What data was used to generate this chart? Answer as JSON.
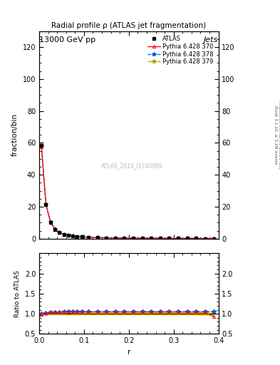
{
  "title": "Radial profile ρ (ATLAS jet fragmentation)",
  "header_left": "13000 GeV pp",
  "header_right": "Jets",
  "ylabel_main": "fraction/bin",
  "ylabel_ratio": "Ratio to ATLAS",
  "xlabel": "r",
  "right_label_top": "Rivet 3.1.10, ≥ 3.2M events",
  "right_label_bot": "mcplots.cern.ch [arXiv:1306.3436]",
  "watermark": "ATLAS_2019_I1740909",
  "ylim_main": [
    0,
    130
  ],
  "ylim_ratio": [
    0.5,
    2.5
  ],
  "yticks_main": [
    0,
    20,
    40,
    60,
    80,
    100,
    120
  ],
  "yticks_ratio": [
    0.5,
    1.0,
    1.5,
    2.0
  ],
  "xticks_main": [
    0.0,
    0.1,
    0.2,
    0.3
  ],
  "xticks_ratio": [
    0.0,
    0.1,
    0.2,
    0.3,
    0.4
  ],
  "xlim": [
    0.0,
    0.4
  ],
  "r_values": [
    0.005,
    0.015,
    0.025,
    0.035,
    0.045,
    0.055,
    0.065,
    0.075,
    0.085,
    0.095,
    0.11,
    0.13,
    0.15,
    0.17,
    0.19,
    0.21,
    0.23,
    0.25,
    0.27,
    0.29,
    0.31,
    0.33,
    0.35,
    0.37,
    0.39
  ],
  "atlas_values": [
    58.5,
    21.2,
    10.1,
    5.8,
    3.7,
    2.6,
    2.0,
    1.6,
    1.3,
    1.05,
    0.82,
    0.62,
    0.5,
    0.4,
    0.34,
    0.28,
    0.24,
    0.21,
    0.18,
    0.16,
    0.14,
    0.13,
    0.11,
    0.1,
    0.095
  ],
  "atlas_errors": [
    0.6,
    0.3,
    0.15,
    0.1,
    0.07,
    0.05,
    0.04,
    0.03,
    0.025,
    0.02,
    0.015,
    0.012,
    0.01,
    0.008,
    0.007,
    0.006,
    0.005,
    0.005,
    0.004,
    0.004,
    0.003,
    0.003,
    0.003,
    0.003,
    0.003
  ],
  "pythia370_ratio": [
    0.98,
    1.02,
    1.04,
    1.04,
    1.04,
    1.04,
    1.05,
    1.04,
    1.04,
    1.04,
    1.04,
    1.04,
    1.04,
    1.04,
    1.04,
    1.04,
    1.04,
    1.04,
    1.04,
    1.04,
    1.04,
    1.04,
    1.04,
    1.04,
    0.93
  ],
  "pythia378_ratio": [
    1.0,
    1.02,
    1.04,
    1.04,
    1.04,
    1.05,
    1.05,
    1.05,
    1.05,
    1.05,
    1.05,
    1.05,
    1.05,
    1.05,
    1.05,
    1.05,
    1.05,
    1.05,
    1.05,
    1.05,
    1.05,
    1.05,
    1.05,
    1.05,
    1.05
  ],
  "pythia379_ratio": [
    0.99,
    1.01,
    1.03,
    1.04,
    1.04,
    1.04,
    1.05,
    1.05,
    1.05,
    1.05,
    1.05,
    1.05,
    1.05,
    1.05,
    1.05,
    1.05,
    1.05,
    1.05,
    1.05,
    1.05,
    1.05,
    1.05,
    1.05,
    1.05,
    1.05
  ],
  "color_atlas": "#000000",
  "color_370": "#ff0000",
  "color_378": "#0055ff",
  "color_379": "#aaaa00",
  "band_color": "#dddd00",
  "legend_entries": [
    "ATLAS",
    "Pythia 6.428 370",
    "Pythia 6.428 378",
    "Pythia 6.428 379"
  ],
  "background_color": "#ffffff"
}
